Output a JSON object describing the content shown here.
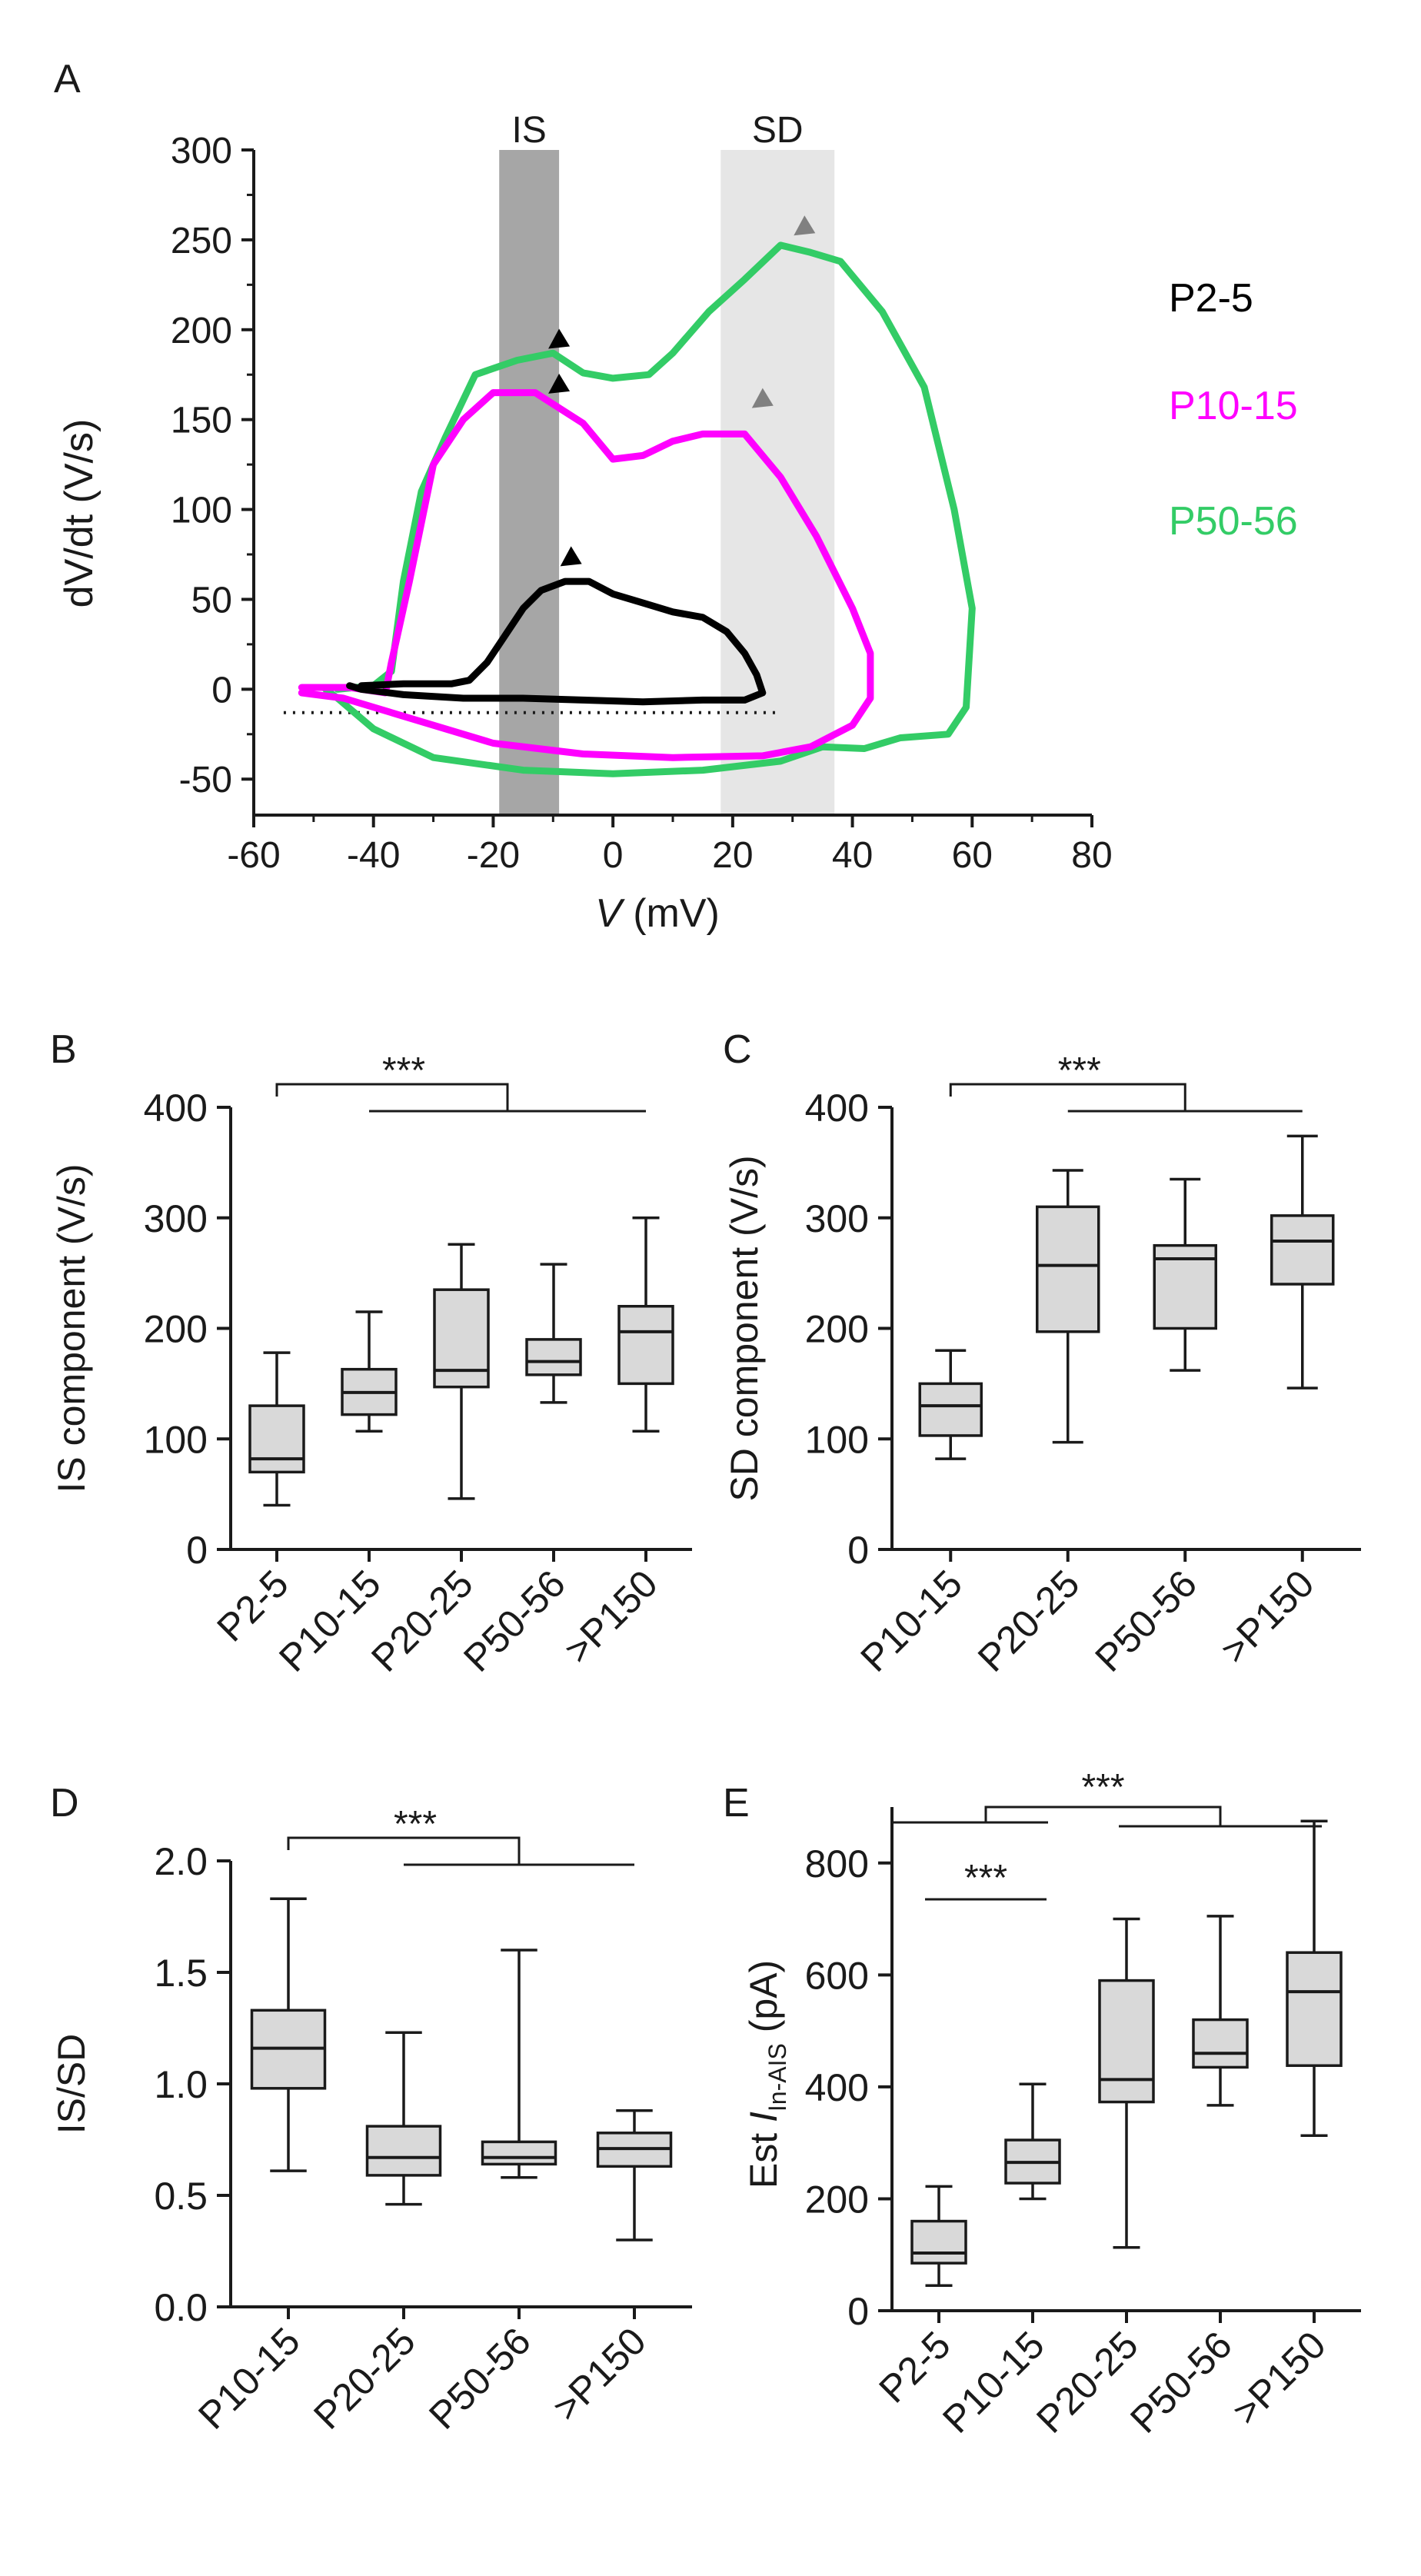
{
  "chart_data": [
    {
      "panel": "A",
      "type": "line",
      "xlabel_italic": "V",
      "xlabel_rest": " (mV)",
      "ylabel": "dV/dt (V/s)",
      "xlim": [
        -60,
        80
      ],
      "ylim": [
        -70,
        300
      ],
      "xticks": [
        "-60",
        "-40",
        "-20",
        "0",
        "20",
        "40",
        "60",
        "80"
      ],
      "yticks": [
        "300",
        "250",
        "200",
        "150",
        "100",
        "50",
        "0",
        "-50"
      ],
      "bands": [
        {
          "label": "IS",
          "x0": -19,
          "x1": -9,
          "color": "#a6a6a6"
        },
        {
          "label": "SD",
          "x0": 18,
          "x1": 37,
          "color": "#e6e6e6"
        }
      ],
      "baseline": {
        "y": -13,
        "x0": -55,
        "x1": 28
      },
      "series": [
        {
          "name": "P2-5",
          "color": "#000000",
          "points": [
            [
              -42,
              2
            ],
            [
              -35,
              3
            ],
            [
              -27,
              3
            ],
            [
              -24,
              5
            ],
            [
              -21,
              15
            ],
            [
              -18,
              30
            ],
            [
              -15,
              45
            ],
            [
              -12,
              55
            ],
            [
              -8,
              60
            ],
            [
              -4,
              60
            ],
            [
              0,
              53
            ],
            [
              5,
              48
            ],
            [
              10,
              43
            ],
            [
              15,
              40
            ],
            [
              19,
              32
            ],
            [
              22,
              20
            ],
            [
              24,
              8
            ],
            [
              25,
              -2
            ],
            [
              22,
              -6
            ],
            [
              15,
              -6
            ],
            [
              5,
              -7
            ],
            [
              -5,
              -6
            ],
            [
              -15,
              -5
            ],
            [
              -25,
              -5
            ],
            [
              -35,
              -3
            ],
            [
              -42,
              0
            ],
            [
              -44,
              2
            ]
          ],
          "peak_marker": [
            -7,
            74
          ],
          "marker_color": "#000000"
        },
        {
          "name": "P10-15",
          "color": "#ff00ff",
          "points": [
            [
              -52,
              1
            ],
            [
              -44,
              1
            ],
            [
              -38,
              -2
            ],
            [
              -37,
              15
            ],
            [
              -34,
              60
            ],
            [
              -30,
              125
            ],
            [
              -25,
              150
            ],
            [
              -20,
              165
            ],
            [
              -13,
              165
            ],
            [
              -5,
              148
            ],
            [
              0,
              128
            ],
            [
              5,
              130
            ],
            [
              10,
              138
            ],
            [
              15,
              142
            ],
            [
              22,
              142
            ],
            [
              28,
              118
            ],
            [
              34,
              85
            ],
            [
              40,
              45
            ],
            [
              43,
              20
            ],
            [
              43,
              -5
            ],
            [
              40,
              -20
            ],
            [
              33,
              -32
            ],
            [
              25,
              -37
            ],
            [
              10,
              -38
            ],
            [
              -5,
              -36
            ],
            [
              -20,
              -30
            ],
            [
              -35,
              -15
            ],
            [
              -45,
              -5
            ],
            [
              -52,
              -2
            ]
          ],
          "peak_marker": [
            25,
            162
          ],
          "marker_color": "#808080"
        },
        {
          "name": "P50-56",
          "color": "#33cc66",
          "points": [
            [
              -46,
              0
            ],
            [
              -40,
              2
            ],
            [
              -37,
              10
            ],
            [
              -35,
              60
            ],
            [
              -32,
              110
            ],
            [
              -28,
              140
            ],
            [
              -23,
              175
            ],
            [
              -16,
              183
            ],
            [
              -10,
              187
            ],
            [
              -5,
              176
            ],
            [
              0,
              173
            ],
            [
              6,
              175
            ],
            [
              10,
              187
            ],
            [
              16,
              210
            ],
            [
              22,
              228
            ],
            [
              28,
              247
            ],
            [
              33,
              243
            ],
            [
              38,
              238
            ],
            [
              45,
              210
            ],
            [
              52,
              168
            ],
            [
              57,
              100
            ],
            [
              60,
              45
            ],
            [
              59,
              -10
            ],
            [
              56,
              -25
            ],
            [
              48,
              -27
            ],
            [
              42,
              -33
            ],
            [
              35,
              -32
            ],
            [
              28,
              -40
            ],
            [
              15,
              -45
            ],
            [
              0,
              -47
            ],
            [
              -15,
              -45
            ],
            [
              -30,
              -38
            ],
            [
              -40,
              -22
            ],
            [
              -46,
              -5
            ],
            [
              -48,
              0
            ]
          ],
          "peak_marker": [
            32,
            258
          ],
          "marker_color": "#808080",
          "is_marker_1": [
            -9,
            195
          ],
          "is_marker_2": [
            -9,
            170
          ]
        }
      ],
      "legend": [
        "P2-5",
        "P10-15",
        "P50-56"
      ]
    },
    {
      "panel": "B",
      "type": "box",
      "ylabel": "IS component (V/s)",
      "ylim": [
        0,
        400
      ],
      "yticks": [
        "0",
        "100",
        "200",
        "300",
        "400"
      ],
      "categories": [
        "P2-5",
        "P10-15",
        "P20-25",
        "P50-56",
        ">P150"
      ],
      "boxes": [
        {
          "min": 40,
          "q1": 70,
          "median": 82,
          "q3": 130,
          "max": 178
        },
        {
          "min": 107,
          "q1": 122,
          "median": 142,
          "q3": 163,
          "max": 215
        },
        {
          "min": 46,
          "q1": 147,
          "median": 162,
          "q3": 235,
          "max": 276
        },
        {
          "min": 133,
          "q1": 158,
          "median": 170,
          "q3": 190,
          "max": 258
        },
        {
          "min": 107,
          "q1": 150,
          "median": 197,
          "q3": 220,
          "max": 300
        }
      ],
      "significance": "***"
    },
    {
      "panel": "C",
      "type": "box",
      "ylabel": "SD component (V/s)",
      "ylim": [
        0,
        400
      ],
      "yticks": [
        "0",
        "100",
        "200",
        "300",
        "400"
      ],
      "categories": [
        "P10-15",
        "P20-25",
        "P50-56",
        ">P150"
      ],
      "boxes": [
        {
          "min": 82,
          "q1": 103,
          "median": 130,
          "q3": 150,
          "max": 180
        },
        {
          "min": 97,
          "q1": 197,
          "median": 257,
          "q3": 310,
          "max": 343
        },
        {
          "min": 162,
          "q1": 200,
          "median": 263,
          "q3": 275,
          "max": 335
        },
        {
          "min": 146,
          "q1": 240,
          "median": 279,
          "q3": 302,
          "max": 374
        }
      ],
      "significance": "***"
    },
    {
      "panel": "D",
      "type": "box",
      "ylabel": "IS/SD",
      "ylim": [
        0,
        2
      ],
      "yticks": [
        "0.0",
        "0.5",
        "1.0",
        "1.5",
        "2.0"
      ],
      "categories": [
        "P10-15",
        "P20-25",
        "P50-56",
        ">P150"
      ],
      "boxes": [
        {
          "min": 0.61,
          "q1": 0.98,
          "median": 1.16,
          "q3": 1.33,
          "max": 1.83
        },
        {
          "min": 0.46,
          "q1": 0.59,
          "median": 0.67,
          "q3": 0.81,
          "max": 1.23
        },
        {
          "min": 0.58,
          "q1": 0.64,
          "median": 0.67,
          "q3": 0.74,
          "max": 1.6
        },
        {
          "min": 0.3,
          "q1": 0.63,
          "median": 0.71,
          "q3": 0.78,
          "max": 0.88
        }
      ],
      "significance": "***"
    },
    {
      "panel": "E",
      "type": "box",
      "ylabel_pre": "Est ",
      "ylabel_italic": "I",
      "ylabel_sub": "In-AIS",
      "ylabel_post": " (pA)",
      "ylim": [
        0,
        900
      ],
      "yticks": [
        "0",
        "200",
        "400",
        "600",
        "800"
      ],
      "categories": [
        "P2-5",
        "P10-15",
        "P20-25",
        "P50-56",
        ">P150"
      ],
      "boxes": [
        {
          "min": 45,
          "q1": 85,
          "median": 103,
          "q3": 160,
          "max": 222
        },
        {
          "min": 200,
          "q1": 228,
          "median": 265,
          "q3": 305,
          "max": 405
        },
        {
          "min": 113,
          "q1": 373,
          "median": 413,
          "q3": 590,
          "max": 700
        },
        {
          "min": 367,
          "q1": 435,
          "median": 460,
          "q3": 520,
          "max": 705
        },
        {
          "min": 313,
          "q1": 438,
          "median": 570,
          "q3": 640,
          "max": 875
        }
      ],
      "significance_1": "***",
      "significance_2": "***"
    }
  ]
}
